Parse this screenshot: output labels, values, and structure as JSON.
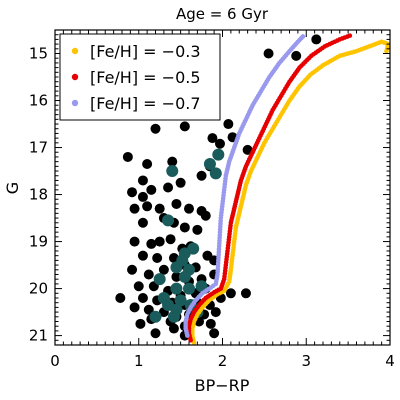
{
  "chart_data": {
    "type": "scatter",
    "title": "Age = 6 Gyr",
    "xlabel": "BP−RP",
    "ylabel": "G",
    "xlim": [
      0,
      4
    ],
    "ylim": [
      21.2,
      14.5
    ],
    "y_inverted": true,
    "xticks": [
      0,
      1,
      2,
      3,
      4
    ],
    "yticks": [
      15,
      16,
      17,
      18,
      19,
      20,
      21
    ],
    "grid": false,
    "legend_position": "top-left",
    "series": [
      {
        "name": "[Fe/H] = −0.3",
        "color": "#ffc400",
        "kind": "isochrone",
        "points": [
          [
            1.66,
            21.15
          ],
          [
            1.64,
            21.0
          ],
          [
            1.64,
            20.85
          ],
          [
            1.66,
            20.7
          ],
          [
            1.7,
            20.55
          ],
          [
            1.76,
            20.4
          ],
          [
            1.84,
            20.25
          ],
          [
            1.94,
            20.12
          ],
          [
            2.02,
            20.05
          ],
          [
            2.08,
            19.85
          ],
          [
            2.1,
            19.6
          ],
          [
            2.12,
            19.3
          ],
          [
            2.14,
            19.0
          ],
          [
            2.16,
            18.7
          ],
          [
            2.2,
            18.4
          ],
          [
            2.24,
            18.1
          ],
          [
            2.28,
            17.8
          ],
          [
            2.34,
            17.5
          ],
          [
            2.42,
            17.2
          ],
          [
            2.5,
            16.9
          ],
          [
            2.6,
            16.6
          ],
          [
            2.7,
            16.3
          ],
          [
            2.8,
            16.0
          ],
          [
            2.92,
            15.7
          ],
          [
            3.05,
            15.45
          ],
          [
            3.2,
            15.25
          ],
          [
            3.4,
            15.05
          ],
          [
            3.6,
            14.95
          ],
          [
            3.75,
            14.85
          ],
          [
            3.9,
            14.75
          ],
          [
            3.98,
            14.8
          ],
          [
            3.95,
            15.0
          ]
        ]
      },
      {
        "name": "[Fe/H] = −0.5",
        "color": "#e60000",
        "kind": "isochrone",
        "points": [
          [
            1.62,
            21.1
          ],
          [
            1.6,
            20.95
          ],
          [
            1.6,
            20.8
          ],
          [
            1.62,
            20.65
          ],
          [
            1.66,
            20.5
          ],
          [
            1.72,
            20.35
          ],
          [
            1.8,
            20.2
          ],
          [
            1.9,
            20.08
          ],
          [
            1.98,
            20.0
          ],
          [
            2.02,
            19.8
          ],
          [
            2.04,
            19.5
          ],
          [
            2.06,
            19.2
          ],
          [
            2.08,
            18.9
          ],
          [
            2.1,
            18.6
          ],
          [
            2.14,
            18.3
          ],
          [
            2.18,
            18.0
          ],
          [
            2.22,
            17.7
          ],
          [
            2.28,
            17.4
          ],
          [
            2.36,
            17.1
          ],
          [
            2.44,
            16.8
          ],
          [
            2.52,
            16.5
          ],
          [
            2.6,
            16.2
          ],
          [
            2.7,
            15.9
          ],
          [
            2.8,
            15.6
          ],
          [
            2.92,
            15.3
          ],
          [
            3.06,
            15.05
          ],
          [
            3.22,
            14.85
          ],
          [
            3.4,
            14.7
          ],
          [
            3.55,
            14.6
          ]
        ]
      },
      {
        "name": "[Fe/H] = −0.7",
        "color": "#9999ee",
        "kind": "isochrone",
        "points": [
          [
            1.58,
            21.0
          ],
          [
            1.56,
            20.85
          ],
          [
            1.56,
            20.7
          ],
          [
            1.58,
            20.55
          ],
          [
            1.62,
            20.4
          ],
          [
            1.68,
            20.25
          ],
          [
            1.76,
            20.1
          ],
          [
            1.86,
            19.98
          ],
          [
            1.92,
            19.9
          ],
          [
            1.94,
            19.7
          ],
          [
            1.95,
            19.4
          ],
          [
            1.96,
            19.1
          ],
          [
            1.97,
            18.8
          ],
          [
            1.98,
            18.5
          ],
          [
            2.0,
            18.2
          ],
          [
            2.02,
            17.9
          ],
          [
            2.04,
            17.6
          ],
          [
            2.08,
            17.3
          ],
          [
            2.14,
            17.0
          ],
          [
            2.2,
            16.7
          ],
          [
            2.28,
            16.4
          ],
          [
            2.36,
            16.1
          ],
          [
            2.46,
            15.8
          ],
          [
            2.56,
            15.5
          ],
          [
            2.68,
            15.2
          ],
          [
            2.8,
            14.95
          ],
          [
            2.9,
            14.75
          ],
          [
            2.98,
            14.6
          ]
        ]
      },
      {
        "name": "",
        "color": "#000000",
        "kind": "stars",
        "points": [
          [
            3.12,
            14.7
          ],
          [
            1.55,
            14.95
          ],
          [
            2.55,
            15.0
          ],
          [
            2.88,
            15.05
          ],
          [
            1.65,
            15.5
          ],
          [
            1.9,
            16.05
          ],
          [
            2.07,
            16.5
          ],
          [
            1.55,
            16.55
          ],
          [
            1.2,
            16.6
          ],
          [
            1.88,
            16.8
          ],
          [
            1.97,
            16.92
          ],
          [
            2.12,
            16.78
          ],
          [
            2.3,
            17.05
          ],
          [
            1.85,
            17.4
          ],
          [
            0.87,
            17.2
          ],
          [
            1.1,
            17.35
          ],
          [
            1.4,
            17.3
          ],
          [
            1.75,
            17.6
          ],
          [
            1.5,
            17.75
          ],
          [
            1.35,
            17.85
          ],
          [
            1.05,
            17.7
          ],
          [
            1.15,
            17.9
          ],
          [
            0.92,
            17.95
          ],
          [
            1.05,
            18.05
          ],
          [
            0.95,
            18.3
          ],
          [
            1.1,
            18.25
          ],
          [
            1.25,
            18.3
          ],
          [
            1.45,
            18.2
          ],
          [
            1.6,
            18.3
          ],
          [
            1.75,
            18.35
          ],
          [
            1.8,
            18.45
          ],
          [
            1.05,
            18.6
          ],
          [
            1.3,
            18.5
          ],
          [
            1.42,
            18.6
          ],
          [
            1.55,
            18.7
          ],
          [
            1.7,
            18.75
          ],
          [
            0.95,
            19.0
          ],
          [
            1.15,
            19.05
          ],
          [
            1.25,
            19.0
          ],
          [
            1.38,
            18.95
          ],
          [
            1.52,
            19.15
          ],
          [
            1.62,
            19.1
          ],
          [
            1.82,
            19.3
          ],
          [
            1.9,
            19.4
          ],
          [
            1.05,
            19.3
          ],
          [
            1.22,
            19.35
          ],
          [
            1.42,
            19.35
          ],
          [
            1.55,
            19.5
          ],
          [
            1.68,
            19.55
          ],
          [
            0.92,
            19.6
          ],
          [
            1.12,
            19.7
          ],
          [
            1.3,
            19.6
          ],
          [
            1.45,
            19.75
          ],
          [
            1.6,
            19.85
          ],
          [
            1.75,
            19.8
          ],
          [
            1.9,
            19.7
          ],
          [
            1.0,
            19.95
          ],
          [
            1.18,
            19.95
          ],
          [
            1.35,
            20.05
          ],
          [
            1.5,
            20.15
          ],
          [
            1.68,
            20.1
          ],
          [
            1.8,
            20.0
          ],
          [
            1.05,
            20.2
          ],
          [
            1.22,
            20.25
          ],
          [
            1.4,
            20.3
          ],
          [
            1.55,
            20.35
          ],
          [
            1.7,
            20.3
          ],
          [
            1.85,
            20.35
          ],
          [
            1.98,
            20.2
          ],
          [
            2.1,
            20.1
          ],
          [
            2.28,
            20.1
          ],
          [
            0.78,
            20.2
          ],
          [
            0.95,
            20.4
          ],
          [
            1.12,
            20.45
          ],
          [
            1.3,
            20.5
          ],
          [
            1.45,
            20.6
          ],
          [
            1.6,
            20.55
          ],
          [
            1.78,
            20.55
          ],
          [
            1.92,
            20.5
          ],
          [
            1.15,
            20.65
          ],
          [
            1.38,
            20.7
          ],
          [
            1.55,
            20.8
          ],
          [
            1.72,
            20.7
          ],
          [
            1.86,
            20.75
          ],
          [
            1.02,
            20.75
          ],
          [
            1.9,
            20.95
          ],
          [
            1.55,
            21.0
          ],
          [
            1.2,
            20.95
          ],
          [
            1.42,
            20.85
          ]
        ]
      },
      {
        "name": "",
        "color": "#1a5b5b",
        "kind": "members",
        "points": [
          [
            1.95,
            17.15
          ],
          [
            1.85,
            17.35
          ],
          [
            1.92,
            17.55
          ],
          [
            1.4,
            17.5
          ],
          [
            1.35,
            18.55
          ],
          [
            1.65,
            19.15
          ],
          [
            1.55,
            19.25
          ],
          [
            1.45,
            19.55
          ],
          [
            1.6,
            19.6
          ],
          [
            1.55,
            19.75
          ],
          [
            1.25,
            19.8
          ],
          [
            1.45,
            20.0
          ],
          [
            1.6,
            20.0
          ],
          [
            1.5,
            20.25
          ],
          [
            1.62,
            20.35
          ],
          [
            1.35,
            20.35
          ],
          [
            1.45,
            20.45
          ],
          [
            1.2,
            20.6
          ],
          [
            1.42,
            20.6
          ],
          [
            1.7,
            20.5
          ],
          [
            1.3,
            20.2
          ],
          [
            1.52,
            19.4
          ],
          [
            1.75,
            19.95
          ]
        ]
      }
    ]
  }
}
